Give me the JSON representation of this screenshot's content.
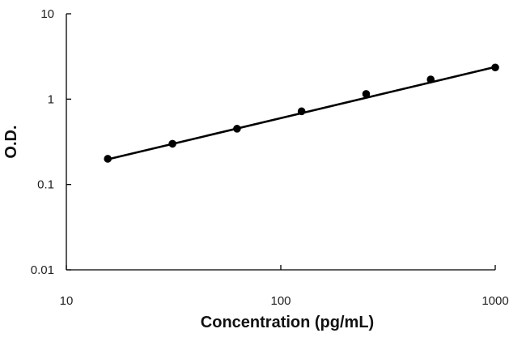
{
  "chart_data": {
    "type": "scatter",
    "xlabel": "Concentration (pg/mL)",
    "ylabel": "O.D.",
    "x_scale": "log",
    "y_scale": "log",
    "xlim": [
      10,
      1000
    ],
    "ylim": [
      0.01,
      10
    ],
    "x_ticks": [
      {
        "value": 10,
        "label": "10"
      },
      {
        "value": 100,
        "label": "100"
      },
      {
        "value": 1000,
        "label": "1000"
      }
    ],
    "y_ticks": [
      {
        "value": 0.01,
        "label": "0.01"
      },
      {
        "value": 0.1,
        "label": "0.1"
      },
      {
        "value": 1,
        "label": "1"
      },
      {
        "value": 10,
        "label": "10"
      }
    ],
    "grid": false,
    "legend": "none",
    "colors": {
      "points": "#000000",
      "fit_line": "#000000",
      "axis": "#000000"
    },
    "series": [
      {
        "x": [
          15.6,
          31.25,
          62.5,
          125,
          250,
          500,
          1000
        ],
        "y": [
          0.2,
          0.3,
          0.45,
          0.72,
          1.15,
          1.7,
          2.35
        ]
      }
    ],
    "fit_line": {
      "type": "power",
      "x": [
        15.6,
        1000
      ],
      "y": [
        0.197,
        2.38
      ]
    }
  }
}
